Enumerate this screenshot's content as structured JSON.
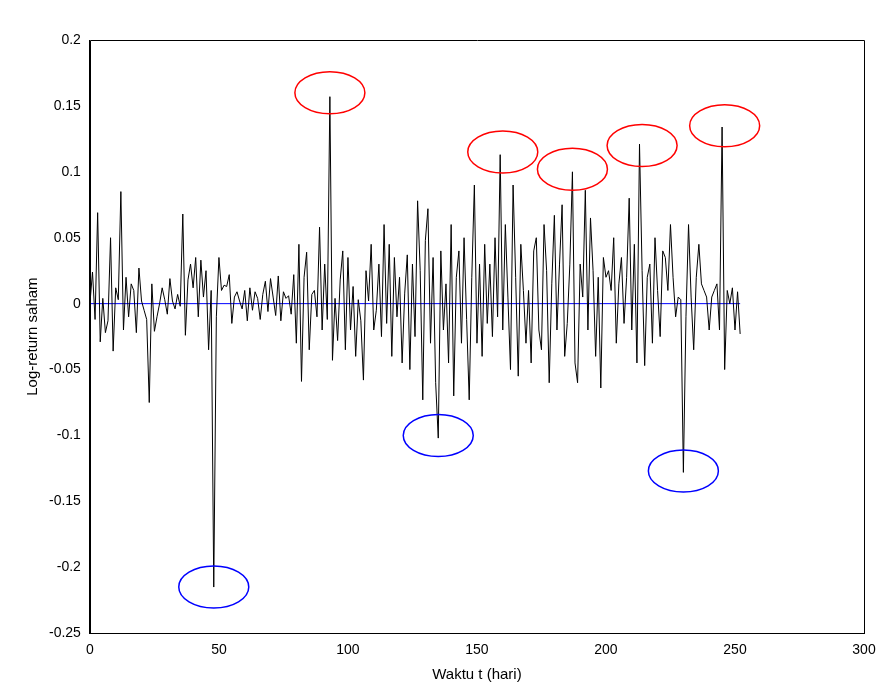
{
  "chart_data": {
    "type": "line",
    "x_label": "Waktu t (hari)",
    "y_label": "Log-return saham",
    "xlim": [
      0,
      300
    ],
    "xticks": [
      0,
      50,
      100,
      150,
      200,
      250,
      300
    ],
    "ylim": [
      -0.25,
      0.2
    ],
    "yticks": [
      -0.25,
      -0.2,
      -0.15,
      -0.1,
      -0.05,
      0,
      0.05,
      0.1,
      0.15,
      0.2
    ],
    "grid": false,
    "series": [
      {
        "color": "#000000",
        "line_style": "solid",
        "x": [
          0,
          1,
          2,
          3,
          4,
          5,
          6,
          7,
          8,
          9,
          10,
          11,
          12,
          13,
          14,
          15,
          16,
          17,
          18,
          19,
          20,
          21,
          22,
          23,
          24,
          25,
          26,
          27,
          28,
          29,
          30,
          31,
          32,
          33,
          34,
          35,
          36,
          37,
          38,
          39,
          40,
          41,
          42,
          43,
          44,
          45,
          46,
          47,
          48,
          49,
          50,
          51,
          52,
          53,
          54,
          55,
          56,
          57,
          58,
          59,
          60,
          61,
          62,
          63,
          64,
          65,
          66,
          67,
          68,
          69,
          70,
          71,
          72,
          73,
          74,
          75,
          76,
          77,
          78,
          79,
          80,
          81,
          82,
          83,
          84,
          85,
          86,
          87,
          88,
          89,
          90,
          91,
          92,
          93,
          94,
          95,
          96,
          97,
          98,
          99,
          100,
          101,
          102,
          103,
          104,
          105,
          106,
          107,
          108,
          109,
          110,
          111,
          112,
          113,
          114,
          115,
          116,
          117,
          118,
          119,
          120,
          121,
          122,
          123,
          124,
          125,
          126,
          127,
          128,
          129,
          130,
          131,
          132,
          133,
          134,
          135,
          136,
          137,
          138,
          139,
          140,
          141,
          142,
          143,
          144,
          145,
          146,
          147,
          148,
          149,
          150,
          151,
          152,
          153,
          154,
          155,
          156,
          157,
          158,
          159,
          160,
          161,
          162,
          163,
          164,
          165,
          166,
          167,
          168,
          169,
          170,
          171,
          172,
          173,
          174,
          175,
          176,
          177,
          178,
          179,
          180,
          181,
          182,
          183,
          184,
          185,
          186,
          187,
          188,
          189,
          190,
          191,
          192,
          193,
          194,
          195,
          196,
          197,
          198,
          199,
          200,
          201,
          202,
          203,
          204,
          205,
          206,
          207,
          208,
          209,
          210,
          211,
          212,
          213,
          214,
          215,
          216,
          217,
          218,
          219,
          220,
          221,
          222,
          223,
          224,
          225,
          226,
          227,
          228,
          229,
          230,
          231,
          232,
          233,
          234,
          235,
          236,
          237,
          238,
          239,
          240,
          241,
          242,
          243,
          244,
          245,
          246,
          247,
          248,
          249,
          250,
          251,
          252
        ],
        "values": [
          0,
          0.024,
          -0.012,
          0.069,
          -0.029,
          0.004,
          -0.022,
          -0.013,
          0.05,
          -0.036,
          0.012,
          0.003,
          0.085,
          -0.02,
          0.02,
          -0.01,
          0.015,
          0.01,
          -0.022,
          0.027,
          0.002,
          -0.005,
          -0.012,
          -0.075,
          0.015,
          -0.021,
          -0.01,
          0,
          0.012,
          0.003,
          -0.008,
          0.019,
          0.002,
          -0.004,
          0.007,
          -0.002,
          0.068,
          -0.024,
          0.018,
          0.03,
          0.012,
          0.035,
          -0.01,
          0.033,
          0.005,
          0.025,
          -0.035,
          0.01,
          -0.215,
          -0.01,
          0.035,
          0.01,
          0.014,
          0.013,
          0.022,
          -0.015,
          0.005,
          0.009,
          0.002,
          -0.004,
          0.01,
          -0.013,
          0.012,
          -0.005,
          0.009,
          0.004,
          -0.012,
          0.007,
          0.017,
          -0.006,
          0.019,
          0.005,
          -0.009,
          0.021,
          -0.013,
          0.009,
          0.004,
          0.006,
          -0.008,
          0.022,
          -0.03,
          0.045,
          -0.059,
          0.02,
          0.039,
          -0.035,
          0.007,
          0.01,
          -0.01,
          0.058,
          -0.02,
          0.03,
          -0.012,
          0.157,
          -0.043,
          0.004,
          -0.028,
          0.018,
          0.04,
          -0.035,
          0.035,
          -0.02,
          0.013,
          -0.04,
          0.003,
          -0.013,
          -0.058,
          0.025,
          0.002,
          0.045,
          -0.02,
          -0.005,
          0.03,
          -0.025,
          0.06,
          -0.015,
          0.045,
          -0.04,
          0.035,
          -0.01,
          0.02,
          -0.045,
          0.008,
          0.037,
          -0.05,
          0.03,
          -0.025,
          0.078,
          0.025,
          -0.073,
          0.048,
          0.072,
          -0.03,
          0.035,
          -0.06,
          -0.102,
          0.04,
          -0.02,
          0.015,
          -0.045,
          0.06,
          -0.07,
          0.02,
          0.04,
          -0.03,
          0.05,
          -0.012,
          -0.073,
          0.02,
          0.09,
          -0.03,
          0.03,
          -0.04,
          0.045,
          -0.015,
          0.03,
          -0.025,
          0.05,
          -0.01,
          0.113,
          -0.02,
          0.06,
          0.005,
          -0.05,
          0.09,
          0.02,
          -0.055,
          0.045,
          0.01,
          -0.03,
          0.01,
          -0.045,
          0.04,
          0.05,
          -0.02,
          -0.035,
          0.06,
          0.025,
          -0.06,
          0.015,
          0.067,
          -0.02,
          0.03,
          0.075,
          -0.04,
          -0.015,
          0.03,
          0.1,
          -0.045,
          -0.06,
          0.03,
          0.005,
          0.086,
          -0.02,
          0.065,
          0.025,
          -0.04,
          0.02,
          -0.064,
          0.035,
          0.02,
          0.025,
          0.01,
          0.05,
          -0.03,
          0.015,
          0.035,
          -0.015,
          0.02,
          0.08,
          -0.02,
          0.045,
          -0.045,
          0.121,
          0.025,
          -0.047,
          0.02,
          0.03,
          -0.03,
          0.05,
          0.01,
          -0.025,
          0.04,
          0.035,
          0.01,
          0.06,
          0.02,
          -0.01,
          0.005,
          0.003,
          -0.128,
          -0.01,
          0.06,
          0.005,
          -0.035,
          0.02,
          0.045,
          0.015,
          0.01,
          0.005,
          -0.02,
          0.005,
          0.01,
          0.015,
          -0.02,
          0.134,
          -0.05,
          0.01,
          0,
          0.012,
          -0.02,
          0.009,
          -0.023
        ]
      },
      {
        "color": "#0000ff",
        "line_style": "solid",
        "x": [
          0,
          252
        ],
        "values": [
          0,
          0
        ]
      }
    ],
    "annotations": [
      {
        "marker": "ellipse",
        "color": "#ff0000",
        "x": 93,
        "y": 0.16
      },
      {
        "marker": "ellipse",
        "color": "#ff0000",
        "x": 160,
        "y": 0.115
      },
      {
        "marker": "ellipse",
        "color": "#ff0000",
        "x": 187,
        "y": 0.102
      },
      {
        "marker": "ellipse",
        "color": "#ff0000",
        "x": 214,
        "y": 0.12
      },
      {
        "marker": "ellipse",
        "color": "#ff0000",
        "x": 246,
        "y": 0.135
      },
      {
        "marker": "ellipse",
        "color": "#0000ff",
        "x": 48,
        "y": -0.215
      },
      {
        "marker": "ellipse",
        "color": "#0000ff",
        "x": 135,
        "y": -0.1
      },
      {
        "marker": "ellipse",
        "color": "#0000ff",
        "x": 230,
        "y": -0.127
      }
    ]
  }
}
